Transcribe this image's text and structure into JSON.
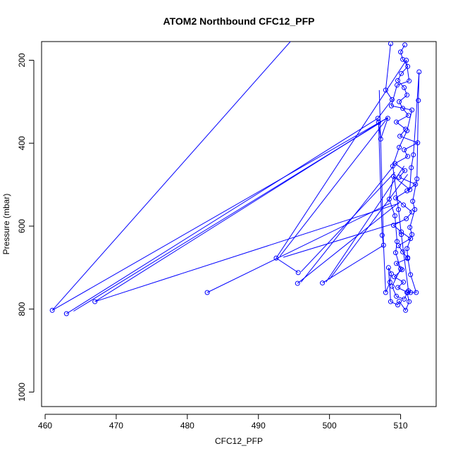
{
  "chart_data": {
    "type": "scatter",
    "title": "ATOM2 Northbound CFC12_PFP",
    "xlabel": "CFC12_PFP",
    "ylabel": "Pressure (mbar)",
    "xlim": [
      459.5,
      515
    ],
    "ylim": [
      1035,
      155
    ],
    "y_reversed": true,
    "x_ticks": [
      460,
      470,
      480,
      490,
      500,
      510
    ],
    "y_ticks": [
      200,
      400,
      600,
      800,
      1000
    ],
    "x_tick_labels": [
      "460",
      "470",
      "480",
      "490",
      "500",
      "510"
    ],
    "y_tick_labels": [
      "200",
      "400",
      "600",
      "800",
      "1000"
    ],
    "series_color": "#0000ff",
    "grid": false,
    "series": [
      {
        "points": [
          [
            511.0,
            760
          ],
          [
            509.6,
            748
          ],
          [
            510.4,
            735
          ],
          [
            509.1,
            722
          ],
          [
            510.2,
            705
          ],
          [
            509.4,
            690
          ],
          [
            511.0,
            678
          ],
          [
            510.3,
            662
          ],
          [
            509.7,
            647
          ],
          [
            511.4,
            630
          ],
          [
            510.1,
            614
          ],
          [
            509.0,
            598
          ],
          [
            510.8,
            582
          ],
          [
            511.6,
            566
          ],
          [
            510.4,
            549
          ],
          [
            509.3,
            532
          ],
          [
            510.9,
            515
          ],
          [
            512.1,
            499
          ],
          [
            509.8,
            482
          ],
          [
            510.6,
            466
          ],
          [
            509.2,
            449
          ],
          [
            511.0,
            432
          ],
          [
            510.5,
            416
          ],
          [
            512.4,
            399
          ],
          [
            509.9,
            383
          ],
          [
            510.7,
            366
          ],
          [
            509.4,
            349
          ],
          [
            511.1,
            333
          ],
          [
            510.3,
            316
          ],
          [
            509.8,
            300
          ],
          [
            510.9,
            284
          ],
          [
            510.5,
            266
          ],
          [
            509.6,
            249
          ],
          [
            510.1,
            232
          ],
          [
            511.0,
            215
          ],
          [
            510.3,
            198
          ],
          [
            510.0,
            180
          ],
          [
            510.6,
            163
          ],
          [
            508.6,
            160
          ],
          [
            507.9,
            272
          ],
          [
            508.8,
            295
          ],
          [
            506.8,
            340
          ],
          [
            507.2,
            390
          ],
          [
            508.2,
            340
          ],
          [
            506.9,
            350
          ],
          [
            507.4,
            622
          ],
          [
            507.6,
            646
          ],
          [
            507.9,
            760
          ],
          [
            508.5,
            735
          ],
          [
            508.7,
            715
          ],
          [
            508.3,
            700
          ],
          [
            508.6,
            782
          ],
          [
            509.6,
            790
          ],
          [
            509.8,
            781
          ],
          [
            510.7,
            803
          ],
          [
            511.2,
            782
          ],
          [
            510.9,
            760
          ],
          [
            511.4,
            760
          ],
          [
            512.2,
            760
          ],
          [
            511.4,
            717
          ],
          [
            511.0,
            676
          ],
          [
            510.9,
            654
          ],
          [
            511.6,
            620
          ],
          [
            511.3,
            603
          ],
          [
            512.0,
            560
          ],
          [
            511.7,
            540
          ],
          [
            512.3,
            486
          ],
          [
            512.5,
            297
          ],
          [
            512.6,
            228
          ],
          [
            511.8,
            428
          ],
          [
            511.5,
            459
          ],
          [
            511.3,
            512
          ],
          [
            509.0,
            480
          ],
          [
            508.4,
            535
          ],
          [
            509.2,
            575
          ],
          [
            509.5,
            637
          ],
          [
            509.3,
            664
          ],
          [
            510.0,
            703
          ],
          [
            508.8,
            745
          ],
          [
            509.4,
            769
          ],
          [
            510.5,
            776
          ],
          [
            511.1,
            756
          ],
          [
            510.1,
            620
          ],
          [
            509.7,
            560
          ],
          [
            508.9,
            455
          ],
          [
            509.8,
            410
          ],
          [
            510.9,
            370
          ],
          [
            511.6,
            320
          ],
          [
            508.7,
            310
          ],
          [
            509.5,
            260
          ],
          [
            511.2,
            250
          ],
          [
            510.8,
            200
          ],
          [
            492.5,
            677
          ],
          [
            495.6,
            712
          ],
          [
            495.5,
            738
          ],
          [
            499.0,
            737
          ],
          [
            482.8,
            760
          ],
          [
            467.0,
            782
          ],
          [
            463.0,
            811
          ],
          [
            461.0,
            803
          ]
        ],
        "segments": [
          [
            [
              461.0,
              803
            ],
            [
              494.5,
              155
            ]
          ],
          [
            [
              461.0,
              803
            ],
            [
              507.0,
              350
            ]
          ],
          [
            [
              463.0,
              811
            ],
            [
              506.8,
              340
            ]
          ],
          [
            [
              464.0,
              805
            ],
            [
              507.2,
              350
            ]
          ],
          [
            [
              467.0,
              782
            ],
            [
              508.2,
              338
            ]
          ],
          [
            [
              467.0,
              782
            ],
            [
              509.8,
              545
            ]
          ],
          [
            [
              482.8,
              760
            ],
            [
              508.5,
              545
            ]
          ],
          [
            [
              493.0,
              673
            ],
            [
              507.9,
              345
            ]
          ],
          [
            [
              496.0,
              710
            ],
            [
              509.2,
              470
            ]
          ],
          [
            [
              495.5,
              738
            ],
            [
              510.0,
              540
            ]
          ],
          [
            [
              496.0,
              735
            ],
            [
              509.0,
              455
            ]
          ],
          [
            [
              499.0,
              737
            ],
            [
              507.6,
              646
            ]
          ],
          [
            [
              499.5,
              735
            ],
            [
              510.5,
              455
            ]
          ],
          [
            [
              500.0,
              728
            ],
            [
              511.0,
              475
            ]
          ],
          [
            [
              493.5,
              675
            ],
            [
              509.8,
              590
            ]
          ],
          [
            [
              507.0,
              272
            ],
            [
              507.6,
              646
            ]
          ]
        ]
      }
    ]
  }
}
